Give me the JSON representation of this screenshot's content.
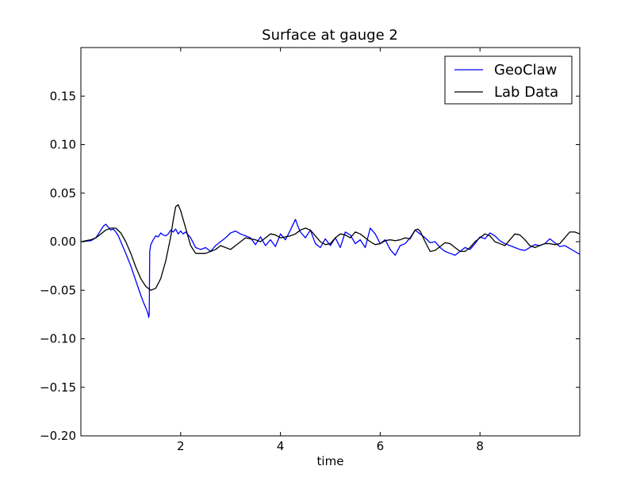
{
  "chart_data": {
    "type": "line",
    "title": "Surface at gauge 2",
    "xlabel": "time",
    "ylabel": "",
    "xlim": [
      0,
      10
    ],
    "ylim": [
      -0.2,
      0.2
    ],
    "x_ticks": [
      2,
      4,
      6,
      8
    ],
    "x_tick_labels": [
      "2",
      "4",
      "6",
      "8"
    ],
    "y_ticks": [
      -0.2,
      -0.15,
      -0.1,
      -0.05,
      0.0,
      0.05,
      0.1,
      0.15
    ],
    "y_tick_labels": [
      "−0.20",
      "−0.15",
      "−0.10",
      "−0.05",
      "0.00",
      "0.05",
      "0.10",
      "0.15"
    ],
    "grid": false,
    "legend_position": "top-right",
    "series": [
      {
        "name": "GeoClaw",
        "color": "#0000ff",
        "x": [
          0.0,
          0.2,
          0.3,
          0.35,
          0.4,
          0.45,
          0.5,
          0.55,
          0.6,
          0.65,
          0.7,
          0.75,
          0.8,
          0.9,
          1.0,
          1.1,
          1.2,
          1.25,
          1.3,
          1.33,
          1.35,
          1.36,
          1.37,
          1.38,
          1.4,
          1.45,
          1.5,
          1.55,
          1.6,
          1.65,
          1.7,
          1.75,
          1.8,
          1.85,
          1.9,
          1.95,
          2.0,
          2.05,
          2.1,
          2.2,
          2.3,
          2.4,
          2.5,
          2.6,
          2.7,
          2.8,
          2.9,
          3.0,
          3.1,
          3.2,
          3.3,
          3.4,
          3.5,
          3.6,
          3.7,
          3.8,
          3.9,
          4.0,
          4.1,
          4.2,
          4.3,
          4.35,
          4.4,
          4.5,
          4.6,
          4.7,
          4.8,
          4.9,
          5.0,
          5.1,
          5.2,
          5.3,
          5.4,
          5.5,
          5.6,
          5.7,
          5.8,
          5.9,
          6.0,
          6.1,
          6.2,
          6.3,
          6.4,
          6.5,
          6.6,
          6.7,
          6.8,
          6.9,
          7.0,
          7.1,
          7.2,
          7.3,
          7.4,
          7.5,
          7.6,
          7.7,
          7.8,
          7.9,
          8.0,
          8.1,
          8.2,
          8.3,
          8.4,
          8.5,
          8.6,
          8.7,
          8.8,
          8.9,
          9.0,
          9.1,
          9.2,
          9.3,
          9.4,
          9.5,
          9.6,
          9.7,
          9.8,
          9.9,
          10.0
        ],
        "values": [
          0.0,
          0.001,
          0.004,
          0.008,
          0.012,
          0.016,
          0.018,
          0.015,
          0.012,
          0.013,
          0.01,
          0.006,
          0.0,
          -0.012,
          -0.025,
          -0.04,
          -0.055,
          -0.062,
          -0.068,
          -0.072,
          -0.075,
          -0.078,
          -0.074,
          -0.01,
          -0.003,
          0.002,
          0.006,
          0.005,
          0.009,
          0.007,
          0.006,
          0.008,
          0.012,
          0.01,
          0.013,
          0.008,
          0.011,
          0.008,
          0.01,
          0.004,
          -0.006,
          -0.008,
          -0.006,
          -0.01,
          -0.004,
          0.0,
          0.004,
          0.009,
          0.011,
          0.008,
          0.006,
          0.004,
          -0.003,
          0.005,
          -0.004,
          0.002,
          -0.005,
          0.008,
          0.002,
          0.012,
          0.023,
          0.016,
          0.01,
          0.004,
          0.012,
          -0.002,
          -0.006,
          0.003,
          -0.004,
          0.004,
          -0.006,
          0.01,
          0.007,
          -0.002,
          0.002,
          -0.006,
          0.014,
          0.008,
          -0.002,
          0.002,
          -0.008,
          -0.014,
          -0.004,
          -0.002,
          0.004,
          0.012,
          0.008,
          0.004,
          -0.001,
          0.0,
          -0.006,
          -0.01,
          -0.012,
          -0.014,
          -0.01,
          -0.006,
          -0.008,
          -0.002,
          0.005,
          0.003,
          0.009,
          0.006,
          0.001,
          -0.002,
          -0.004,
          -0.006,
          -0.008,
          -0.009,
          -0.006,
          -0.003,
          -0.004,
          -0.002,
          0.003,
          -0.001,
          -0.005,
          -0.004,
          -0.007,
          -0.01,
          -0.013
        ]
      },
      {
        "name": "Lab Data",
        "color": "#000000",
        "x": [
          0.0,
          0.1,
          0.2,
          0.3,
          0.4,
          0.5,
          0.6,
          0.7,
          0.8,
          0.9,
          1.0,
          1.1,
          1.2,
          1.3,
          1.4,
          1.5,
          1.6,
          1.7,
          1.8,
          1.85,
          1.9,
          1.95,
          2.0,
          2.1,
          2.2,
          2.3,
          2.4,
          2.5,
          2.6,
          2.7,
          2.8,
          2.9,
          3.0,
          3.1,
          3.2,
          3.3,
          3.4,
          3.5,
          3.6,
          3.7,
          3.8,
          3.9,
          4.0,
          4.1,
          4.2,
          4.3,
          4.4,
          4.5,
          4.6,
          4.7,
          4.8,
          4.9,
          5.0,
          5.1,
          5.2,
          5.3,
          5.4,
          5.5,
          5.6,
          5.7,
          5.8,
          5.9,
          6.0,
          6.1,
          6.2,
          6.3,
          6.4,
          6.5,
          6.6,
          6.7,
          6.75,
          6.8,
          6.9,
          7.0,
          7.1,
          7.2,
          7.3,
          7.4,
          7.5,
          7.6,
          7.7,
          7.8,
          7.9,
          8.0,
          8.1,
          8.2,
          8.3,
          8.4,
          8.5,
          8.6,
          8.7,
          8.8,
          8.9,
          9.0,
          9.1,
          9.2,
          9.3,
          9.4,
          9.5,
          9.6,
          9.7,
          9.8,
          9.9,
          10.0
        ],
        "values": [
          0.0,
          0.001,
          0.002,
          0.004,
          0.008,
          0.012,
          0.014,
          0.014,
          0.009,
          0.0,
          -0.012,
          -0.026,
          -0.038,
          -0.046,
          -0.05,
          -0.048,
          -0.038,
          -0.02,
          0.005,
          0.022,
          0.036,
          0.038,
          0.032,
          0.014,
          -0.004,
          -0.012,
          -0.012,
          -0.012,
          -0.01,
          -0.008,
          -0.004,
          -0.006,
          -0.008,
          -0.004,
          0.0,
          0.004,
          0.003,
          0.002,
          0.0,
          0.004,
          0.008,
          0.007,
          0.004,
          0.005,
          0.006,
          0.008,
          0.012,
          0.014,
          0.012,
          0.006,
          0.0,
          -0.003,
          -0.002,
          0.004,
          0.008,
          0.007,
          0.004,
          0.01,
          0.008,
          0.004,
          0.0,
          -0.003,
          -0.002,
          0.001,
          0.002,
          0.001,
          0.002,
          0.004,
          0.003,
          0.012,
          0.013,
          0.011,
          0.0,
          -0.01,
          -0.009,
          -0.005,
          -0.001,
          -0.002,
          -0.006,
          -0.01,
          -0.01,
          -0.006,
          0.0,
          0.004,
          0.008,
          0.006,
          0.0,
          -0.002,
          -0.004,
          0.002,
          0.008,
          0.007,
          0.002,
          -0.004,
          -0.006,
          -0.004,
          -0.002,
          -0.002,
          -0.003,
          -0.002,
          0.004,
          0.01,
          0.01,
          0.008
        ]
      }
    ]
  }
}
